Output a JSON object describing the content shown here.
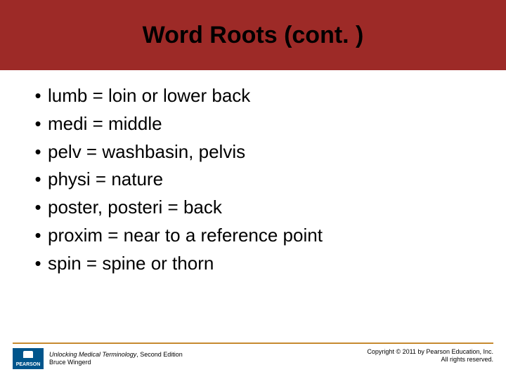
{
  "header": {
    "title": "Word Roots (cont. )",
    "background_color": "#9d2a27",
    "title_color": "#000000",
    "title_fontsize": 34
  },
  "list": {
    "fontsize": 26,
    "text_color": "#000000",
    "bullet_color": "#000000",
    "items": [
      "lumb = loin or lower back",
      "medi = middle",
      "pelv = washbasin, pelvis",
      "physi = nature",
      "poster, posteri = back",
      "proxim = near to a reference point",
      "spin = spine or thorn"
    ]
  },
  "footer": {
    "rule_color": "#c68a2f",
    "fontsize": 9,
    "text_color": "#000000",
    "logo_text": "PEARSON",
    "book_title": "Unlocking Medical Terminology",
    "book_edition": ", Second Edition",
    "author": "Bruce Wingerd",
    "copyright_line1": "Copyright © 2011 by Pearson Education, Inc.",
    "copyright_line2": "All rights reserved."
  }
}
